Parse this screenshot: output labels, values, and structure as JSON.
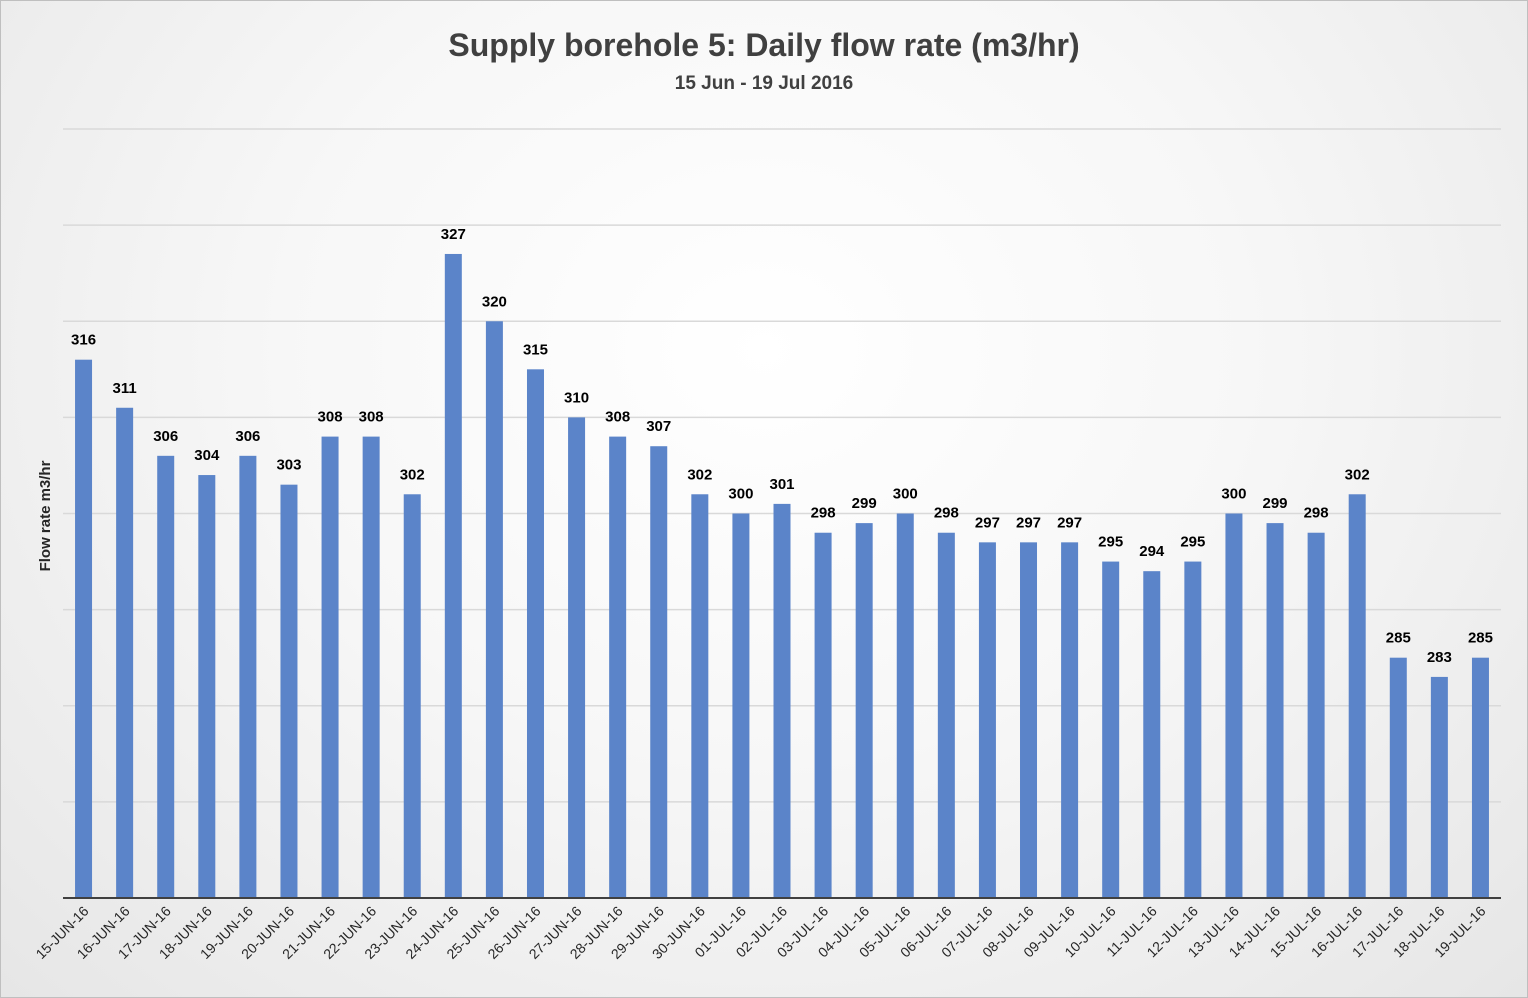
{
  "chart_data": {
    "type": "bar",
    "title": "Supply borehole 5: Daily flow rate (m3/hr)",
    "subtitle": "15 Jun - 19 Jul 2016",
    "xlabel": "",
    "ylabel": "Flow rate m3/hr",
    "ylim": [
      260,
      340
    ],
    "grid": true,
    "legend": "none",
    "categories": [
      "15-JUN-16",
      "16-JUN-16",
      "17-JUN-16",
      "18-JUN-16",
      "19-JUN-16",
      "20-JUN-16",
      "21-JUN-16",
      "22-JUN-16",
      "23-JUN-16",
      "24-JUN-16",
      "25-JUN-16",
      "26-JUN-16",
      "27-JUN-16",
      "28-JUN-16",
      "29-JUN-16",
      "30-JUN-16",
      "01-JUL-16",
      "02-JUL-16",
      "03-JUL-16",
      "04-JUL-16",
      "05-JUL-16",
      "06-JUL-16",
      "07-JUL-16",
      "08-JUL-16",
      "09-JUL-16",
      "10-JUL-16",
      "11-JUL-16",
      "12-JUL-16",
      "13-JUL-16",
      "14-JUL-16",
      "15-JUL-16",
      "16-JUL-16",
      "17-JUL-16",
      "18-JUL-16",
      "19-JUL-16"
    ],
    "values": [
      316,
      311,
      306,
      304,
      306,
      303,
      308,
      308,
      302,
      327,
      320,
      315,
      310,
      308,
      307,
      302,
      300,
      301,
      298,
      299,
      300,
      298,
      297,
      297,
      297,
      295,
      294,
      295,
      300,
      299,
      298,
      302,
      285,
      283,
      285
    ],
    "colors": {
      "bar": "#5b84c9",
      "gridline": "#d9d9d9",
      "axis": "#404040",
      "text": "#000000"
    }
  }
}
